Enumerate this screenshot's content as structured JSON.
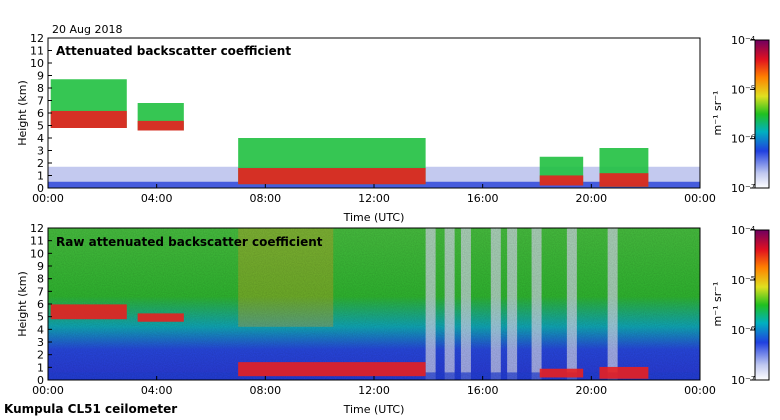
{
  "header": {
    "date": "20 Aug 2018"
  },
  "footer": {
    "instrument": "Kumpula CL51 ceilometer"
  },
  "chart_data": [
    {
      "type": "heatmap",
      "title": "Attenuated backscatter coefficient",
      "xlabel": "Time (UTC)",
      "ylabel": "Height (km)",
      "x_ticks": [
        "00:00",
        "04:00",
        "08:00",
        "12:00",
        "16:00",
        "20:00",
        "00:00"
      ],
      "y_ticks": [
        "0",
        "1",
        "2",
        "3",
        "4",
        "5",
        "6",
        "7",
        "8",
        "9",
        "10",
        "11",
        "12"
      ],
      "xlim_hours": [
        0,
        24
      ],
      "ylim_km": [
        0,
        12
      ],
      "cloud_layers": [
        {
          "start_h": 0.1,
          "end_h": 2.9,
          "top_km": 8.7,
          "base_km": 4.8
        },
        {
          "start_h": 3.3,
          "end_h": 5.0,
          "top_km": 6.8,
          "base_km": 4.6
        },
        {
          "start_h": 7.0,
          "end_h": 13.9,
          "top_km": 4.0,
          "base_km": 0.3
        },
        {
          "start_h": 18.1,
          "end_h": 19.7,
          "top_km": 2.5,
          "base_km": 0.2
        },
        {
          "start_h": 20.3,
          "end_h": 22.1,
          "top_km": 3.2,
          "base_km": 0.1
        }
      ],
      "colorbar": {
        "label": "m⁻¹ sr⁻¹",
        "ticks": [
          "10⁻⁴",
          "10⁻⁵",
          "10⁻⁶",
          "10⁻⁷"
        ]
      }
    },
    {
      "type": "heatmap",
      "title": "Raw attenuated backscatter coefficient",
      "xlabel": "Time (UTC)",
      "ylabel": "Height (km)",
      "x_ticks": [
        "00:00",
        "04:00",
        "08:00",
        "12:00",
        "16:00",
        "20:00",
        "00:00"
      ],
      "y_ticks": [
        "0",
        "1",
        "2",
        "3",
        "4",
        "5",
        "6",
        "7",
        "8",
        "9",
        "10",
        "11",
        "12"
      ],
      "xlim_hours": [
        0,
        24
      ],
      "ylim_km": [
        0,
        12
      ],
      "colorbar": {
        "label": "m⁻¹ sr⁻¹",
        "ticks": [
          "10⁻⁴",
          "10⁻⁵",
          "10⁻⁶",
          "10⁻⁷"
        ]
      }
    }
  ]
}
